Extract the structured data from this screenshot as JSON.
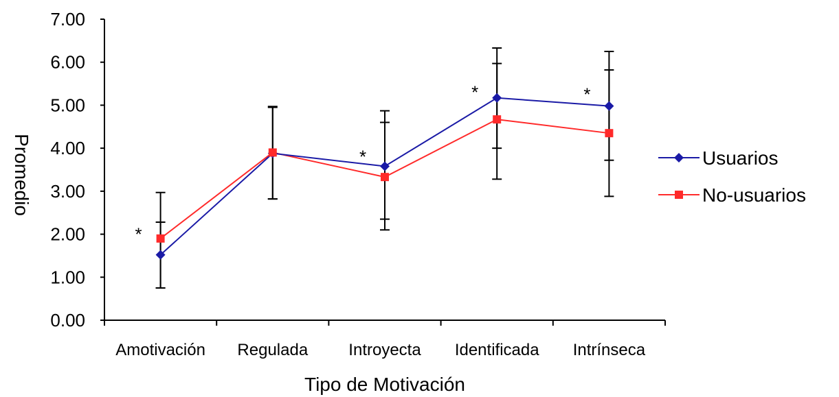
{
  "chart_data": {
    "type": "line",
    "ylabel": "Promedio",
    "xlabel": "Tipo de Motivación",
    "ylim": [
      0,
      7
    ],
    "yticks": [
      "0.00",
      "1.00",
      "2.00",
      "3.00",
      "4.00",
      "5.00",
      "6.00",
      "7.00"
    ],
    "categories": [
      "Amotivación",
      "Regulada",
      "Introyecta",
      "Identificada",
      "Intrínseca"
    ],
    "series": [
      {
        "name": "Usuarios",
        "color": "#1a1aa6",
        "marker": "diamond",
        "values": [
          1.52,
          3.88,
          3.58,
          5.17,
          4.98
        ],
        "err_low": [
          0.75,
          2.82,
          2.1,
          4.0,
          3.72
        ],
        "err_high": [
          2.28,
          4.95,
          4.87,
          6.33,
          6.25
        ]
      },
      {
        "name": "No-usuarios",
        "color": "#ff2a2a",
        "marker": "square",
        "values": [
          1.9,
          3.9,
          3.33,
          4.67,
          4.35
        ],
        "err_low": [
          0.75,
          2.82,
          2.35,
          3.28,
          2.88
        ],
        "err_high": [
          2.97,
          4.97,
          4.6,
          5.97,
          5.82
        ]
      }
    ],
    "annotations": [
      {
        "text": "*",
        "category": "Amotivación",
        "y": 2.05
      },
      {
        "text": "*",
        "category": "Introyecta",
        "y": 3.85
      },
      {
        "text": "*",
        "category": "Identificada",
        "y": 5.35
      },
      {
        "text": "*",
        "category": "Intrínseca",
        "y": 5.3
      }
    ],
    "legend": "right",
    "grid": false
  }
}
